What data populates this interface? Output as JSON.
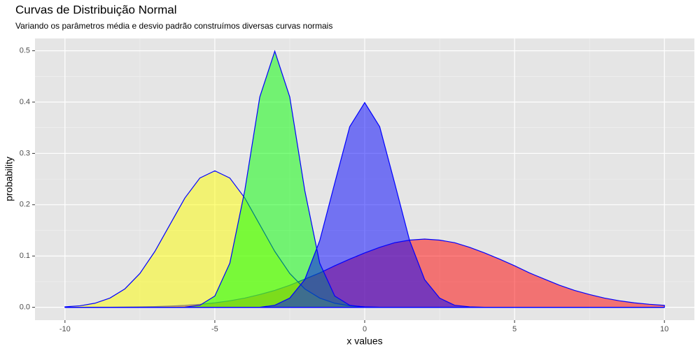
{
  "chart_data": {
    "type": "area",
    "title": "Curvas de Distribuição Normal",
    "subtitle": "Variando os parâmetros média e desvio padrão construímos diversas curvas normais",
    "x_label": "x values",
    "y_label": "probability",
    "x": [
      -10,
      -9.5,
      -9,
      -8.5,
      -8,
      -7.5,
      -7,
      -6.5,
      -6,
      -5.5,
      -5,
      -4.5,
      -4,
      -3.5,
      -3,
      -2.5,
      -2,
      -1.5,
      -1,
      -0.5,
      0,
      0.5,
      1,
      1.5,
      2,
      2.5,
      3,
      3.5,
      4,
      4.5,
      5,
      5.5,
      6,
      6.5,
      7,
      7.5,
      8,
      8.5,
      9,
      9.5,
      10
    ],
    "series": [
      {
        "color": "#ff0000",
        "values": [
          0,
          0.0001,
          0.0002,
          0.0003,
          0.0005,
          0.0009,
          0.0015,
          0.0024,
          0.0038,
          0.0059,
          0.0087,
          0.0127,
          0.018,
          0.025,
          0.033,
          0.043,
          0.055,
          0.067,
          0.081,
          0.094,
          0.106,
          0.117,
          0.126,
          0.131,
          0.133,
          0.131,
          0.126,
          0.117,
          0.106,
          0.094,
          0.081,
          0.067,
          0.055,
          0.043,
          0.033,
          0.025,
          0.018,
          0.0127,
          0.0087,
          0.0059,
          0.0038
        ]
      },
      {
        "color": "#ffff00",
        "values": [
          0.001,
          0.003,
          0.008,
          0.018,
          0.036,
          0.066,
          0.109,
          0.161,
          0.213,
          0.252,
          0.266,
          0.252,
          0.213,
          0.161,
          0.109,
          0.066,
          0.036,
          0.018,
          0.008,
          0.003,
          0.001,
          0,
          0,
          0,
          0,
          0,
          0,
          0,
          0,
          0,
          0,
          0,
          0,
          0,
          0,
          0,
          0,
          0,
          0,
          0,
          0
        ]
      },
      {
        "color": "#00ff00",
        "values": [
          0,
          0,
          0,
          0,
          0,
          0,
          0,
          0,
          0.0004,
          0.004,
          0.022,
          0.086,
          0.228,
          0.41,
          0.499,
          0.41,
          0.228,
          0.086,
          0.022,
          0.004,
          0.0004,
          0,
          0,
          0,
          0,
          0,
          0,
          0,
          0,
          0,
          0,
          0,
          0,
          0,
          0,
          0,
          0,
          0,
          0,
          0,
          0
        ]
      },
      {
        "color": "#0000ff",
        "values": [
          0,
          0,
          0,
          0,
          0,
          0,
          0,
          0,
          0,
          0,
          0,
          0,
          0,
          0,
          0.004,
          0.018,
          0.054,
          0.13,
          0.242,
          0.352,
          0.399,
          0.352,
          0.242,
          0.13,
          0.054,
          0.018,
          0.004,
          0.001,
          0,
          0,
          0,
          0,
          0,
          0,
          0,
          0,
          0,
          0,
          0,
          0,
          0
        ]
      }
    ],
    "outline_color": "#0000ff",
    "xlim": [
      -11,
      11
    ],
    "xticks": [
      -10,
      -5,
      0,
      5,
      10
    ],
    "ylim": [
      -0.025,
      0.524
    ],
    "yticks": [
      {
        "value": 0,
        "label": "0.0"
      },
      {
        "value": 0.1,
        "label": "0.1"
      },
      {
        "value": 0.2,
        "label": "0.2"
      },
      {
        "value": 0.3,
        "label": "0.3"
      },
      {
        "value": 0.4,
        "label": "0.4"
      },
      {
        "value": 0.5,
        "label": "0.5"
      }
    ],
    "grid": true
  }
}
